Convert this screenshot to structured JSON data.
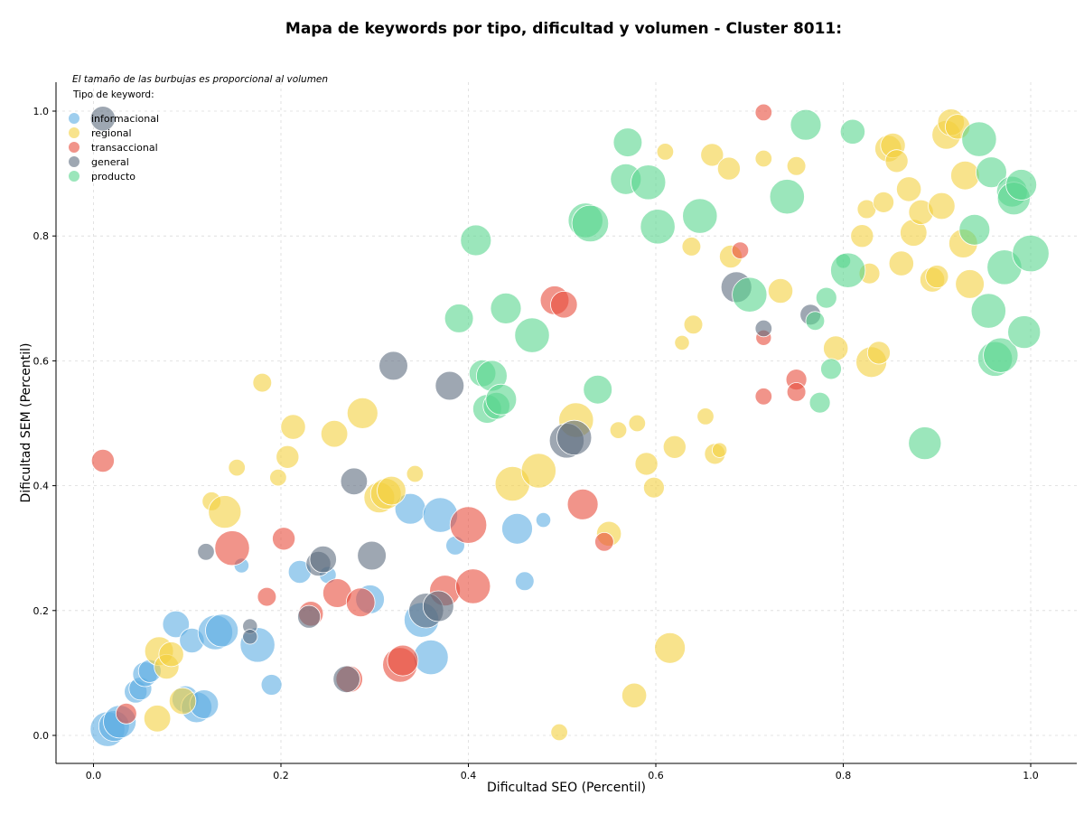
{
  "chart_data": {
    "type": "scatter",
    "title": "Mapa de keywords por tipo, dificultad y volumen - Cluster 8011:",
    "xlabel": "Dificultad SEO (Percentil)",
    "ylabel": "Dificultad SEM (Percentil)",
    "annotation": "El tamaño de las burbujas es proporcional al volumen",
    "legend_title": "Tipo de keyword:",
    "legend_placement": "top-left",
    "grid": true,
    "xlim": [
      -0.04,
      1.05
    ],
    "ylim": [
      -0.045,
      1.05
    ],
    "xticks": [
      "0.0",
      "0.2",
      "0.4",
      "0.6",
      "0.8",
      "1.0"
    ],
    "yticks": [
      "0.0",
      "0.2",
      "0.4",
      "0.6",
      "0.8",
      "1.0"
    ],
    "series": [
      {
        "name": "informacional",
        "color": "#5DADE2",
        "points": [
          [
            0.015,
            0.01,
            0.6
          ],
          [
            0.022,
            0.015,
            0.5
          ],
          [
            0.028,
            0.022,
            0.55
          ],
          [
            0.045,
            0.07,
            0.3
          ],
          [
            0.05,
            0.075,
            0.3
          ],
          [
            0.055,
            0.098,
            0.35
          ],
          [
            0.06,
            0.103,
            0.3
          ],
          [
            0.088,
            0.178,
            0.4
          ],
          [
            0.098,
            0.058,
            0.4
          ],
          [
            0.105,
            0.152,
            0.35
          ],
          [
            0.11,
            0.045,
            0.5
          ],
          [
            0.118,
            0.05,
            0.45
          ],
          [
            0.13,
            0.165,
            0.6
          ],
          [
            0.137,
            0.168,
            0.55
          ],
          [
            0.158,
            0.272,
            0.1
          ],
          [
            0.175,
            0.145,
            0.6
          ],
          [
            0.19,
            0.081,
            0.25
          ],
          [
            0.22,
            0.262,
            0.3
          ],
          [
            0.25,
            0.257,
            0.15
          ],
          [
            0.295,
            0.218,
            0.45
          ],
          [
            0.338,
            0.363,
            0.5
          ],
          [
            0.35,
            0.185,
            0.6
          ],
          [
            0.36,
            0.125,
            0.6
          ],
          [
            0.37,
            0.353,
            0.6
          ],
          [
            0.386,
            0.304,
            0.2
          ],
          [
            0.452,
            0.331,
            0.5
          ],
          [
            0.46,
            0.247,
            0.2
          ],
          [
            0.48,
            0.345,
            0.1
          ]
        ]
      },
      {
        "name": "regional",
        "color": "#F4D03F",
        "points": [
          [
            0.068,
            0.027,
            0.4
          ],
          [
            0.07,
            0.135,
            0.45
          ],
          [
            0.078,
            0.11,
            0.35
          ],
          [
            0.083,
            0.13,
            0.35
          ],
          [
            0.095,
            0.055,
            0.4
          ],
          [
            0.126,
            0.375,
            0.2
          ],
          [
            0.14,
            0.358,
            0.55
          ],
          [
            0.153,
            0.429,
            0.15
          ],
          [
            0.18,
            0.565,
            0.2
          ],
          [
            0.197,
            0.413,
            0.15
          ],
          [
            0.207,
            0.446,
            0.3
          ],
          [
            0.213,
            0.494,
            0.35
          ],
          [
            0.257,
            0.483,
            0.4
          ],
          [
            0.287,
            0.516,
            0.5
          ],
          [
            0.305,
            0.381,
            0.5
          ],
          [
            0.312,
            0.387,
            0.5
          ],
          [
            0.318,
            0.392,
            0.45
          ],
          [
            0.343,
            0.419,
            0.15
          ],
          [
            0.447,
            0.403,
            0.6
          ],
          [
            0.475,
            0.424,
            0.6
          ],
          [
            0.497,
            0.005,
            0.15
          ],
          [
            0.515,
            0.505,
            0.6
          ],
          [
            0.55,
            0.323,
            0.35
          ],
          [
            0.56,
            0.489,
            0.15
          ],
          [
            0.577,
            0.064,
            0.35
          ],
          [
            0.58,
            0.5,
            0.15
          ],
          [
            0.59,
            0.435,
            0.3
          ],
          [
            0.598,
            0.397,
            0.25
          ],
          [
            0.61,
            0.935,
            0.15
          ],
          [
            0.615,
            0.14,
            0.5
          ],
          [
            0.62,
            0.462,
            0.3
          ],
          [
            0.628,
            0.629,
            0.1
          ],
          [
            0.638,
            0.783,
            0.2
          ],
          [
            0.64,
            0.658,
            0.2
          ],
          [
            0.653,
            0.511,
            0.15
          ],
          [
            0.66,
            0.93,
            0.3
          ],
          [
            0.663,
            0.451,
            0.25
          ],
          [
            0.668,
            0.457,
            0.1
          ],
          [
            0.678,
            0.908,
            0.3
          ],
          [
            0.68,
            0.767,
            0.3
          ],
          [
            0.715,
            0.924,
            0.15
          ],
          [
            0.733,
            0.712,
            0.35
          ],
          [
            0.75,
            0.912,
            0.2
          ],
          [
            0.792,
            0.62,
            0.35
          ],
          [
            0.82,
            0.8,
            0.3
          ],
          [
            0.825,
            0.843,
            0.2
          ],
          [
            0.828,
            0.74,
            0.25
          ],
          [
            0.83,
            0.598,
            0.5
          ],
          [
            0.838,
            0.613,
            0.3
          ],
          [
            0.843,
            0.854,
            0.25
          ],
          [
            0.848,
            0.94,
            0.4
          ],
          [
            0.853,
            0.945,
            0.35
          ],
          [
            0.857,
            0.92,
            0.3
          ],
          [
            0.862,
            0.756,
            0.35
          ],
          [
            0.87,
            0.875,
            0.35
          ],
          [
            0.875,
            0.805,
            0.4
          ],
          [
            0.883,
            0.838,
            0.35
          ],
          [
            0.895,
            0.73,
            0.35
          ],
          [
            0.9,
            0.735,
            0.3
          ],
          [
            0.905,
            0.848,
            0.4
          ],
          [
            0.91,
            0.962,
            0.45
          ],
          [
            0.915,
            0.982,
            0.4
          ],
          [
            0.922,
            0.975,
            0.35
          ],
          [
            0.928,
            0.788,
            0.45
          ],
          [
            0.93,
            0.897,
            0.45
          ],
          [
            0.935,
            0.723,
            0.45
          ]
        ]
      },
      {
        "name": "transaccional",
        "color": "#E74C3C",
        "points": [
          [
            0.01,
            0.44,
            0.3
          ],
          [
            0.035,
            0.035,
            0.25
          ],
          [
            0.148,
            0.3,
            0.6
          ],
          [
            0.185,
            0.222,
            0.2
          ],
          [
            0.203,
            0.315,
            0.3
          ],
          [
            0.232,
            0.195,
            0.35
          ],
          [
            0.26,
            0.228,
            0.45
          ],
          [
            0.285,
            0.213,
            0.45
          ],
          [
            0.327,
            0.113,
            0.6
          ],
          [
            0.33,
            0.12,
            0.5
          ],
          [
            0.375,
            0.232,
            0.5
          ],
          [
            0.4,
            0.337,
            0.65
          ],
          [
            0.405,
            0.239,
            0.6
          ],
          [
            0.492,
            0.697,
            0.45
          ],
          [
            0.502,
            0.69,
            0.4
          ],
          [
            0.522,
            0.37,
            0.5
          ],
          [
            0.545,
            0.31,
            0.2
          ],
          [
            0.69,
            0.777,
            0.15
          ],
          [
            0.715,
            0.998,
            0.15
          ],
          [
            0.715,
            0.637,
            0.12
          ],
          [
            0.715,
            0.543,
            0.15
          ],
          [
            0.75,
            0.57,
            0.25
          ],
          [
            0.75,
            0.55,
            0.2
          ],
          [
            0.273,
            0.09,
            0.4
          ]
        ]
      },
      {
        "name": "general",
        "color": "#5D6D7E",
        "points": [
          [
            0.12,
            0.294,
            0.15
          ],
          [
            0.167,
            0.175,
            0.1
          ],
          [
            0.167,
            0.158,
            0.1
          ],
          [
            0.23,
            0.19,
            0.3
          ],
          [
            0.24,
            0.275,
            0.35
          ],
          [
            0.245,
            0.282,
            0.4
          ],
          [
            0.27,
            0.09,
            0.4
          ],
          [
            0.278,
            0.407,
            0.4
          ],
          [
            0.297,
            0.288,
            0.45
          ],
          [
            0.32,
            0.592,
            0.45
          ],
          [
            0.355,
            0.2,
            0.6
          ],
          [
            0.368,
            0.207,
            0.5
          ],
          [
            0.38,
            0.56,
            0.45
          ],
          [
            0.505,
            0.472,
            0.6
          ],
          [
            0.513,
            0.477,
            0.6
          ],
          [
            0.686,
            0.718,
            0.5
          ],
          [
            0.715,
            0.652,
            0.15
          ],
          [
            0.765,
            0.674,
            0.25
          ],
          [
            0.01,
            0.988,
            0.35
          ]
        ]
      },
      {
        "name": "producto",
        "color": "#58D68D",
        "points": [
          [
            0.39,
            0.668,
            0.45
          ],
          [
            0.408,
            0.793,
            0.5
          ],
          [
            0.415,
            0.58,
            0.4
          ],
          [
            0.42,
            0.523,
            0.45
          ],
          [
            0.425,
            0.576,
            0.5
          ],
          [
            0.43,
            0.528,
            0.4
          ],
          [
            0.435,
            0.538,
            0.5
          ],
          [
            0.44,
            0.684,
            0.5
          ],
          [
            0.468,
            0.641,
            0.6
          ],
          [
            0.525,
            0.825,
            0.6
          ],
          [
            0.53,
            0.82,
            0.65
          ],
          [
            0.538,
            0.554,
            0.45
          ],
          [
            0.57,
            0.95,
            0.45
          ],
          [
            0.568,
            0.891,
            0.5
          ],
          [
            0.592,
            0.886,
            0.6
          ],
          [
            0.602,
            0.815,
            0.6
          ],
          [
            0.647,
            0.832,
            0.6
          ],
          [
            0.7,
            0.706,
            0.6
          ],
          [
            0.74,
            0.863,
            0.6
          ],
          [
            0.76,
            0.978,
            0.5
          ],
          [
            0.77,
            0.664,
            0.2
          ],
          [
            0.775,
            0.533,
            0.25
          ],
          [
            0.782,
            0.701,
            0.25
          ],
          [
            0.787,
            0.587,
            0.25
          ],
          [
            0.8,
            0.76,
            0.1
          ],
          [
            0.805,
            0.745,
            0.6
          ],
          [
            0.81,
            0.967,
            0.35
          ],
          [
            0.887,
            0.468,
            0.55
          ],
          [
            0.94,
            0.81,
            0.5
          ],
          [
            0.945,
            0.955,
            0.6
          ],
          [
            0.955,
            0.68,
            0.6
          ],
          [
            0.958,
            0.902,
            0.5
          ],
          [
            0.962,
            0.603,
            0.6
          ],
          [
            0.968,
            0.609,
            0.6
          ],
          [
            0.972,
            0.75,
            0.6
          ],
          [
            0.98,
            0.871,
            0.5
          ],
          [
            0.982,
            0.86,
            0.55
          ],
          [
            0.99,
            0.882,
            0.5
          ],
          [
            0.993,
            0.646,
            0.55
          ],
          [
            1.0,
            0.772,
            0.65
          ]
        ]
      }
    ]
  }
}
